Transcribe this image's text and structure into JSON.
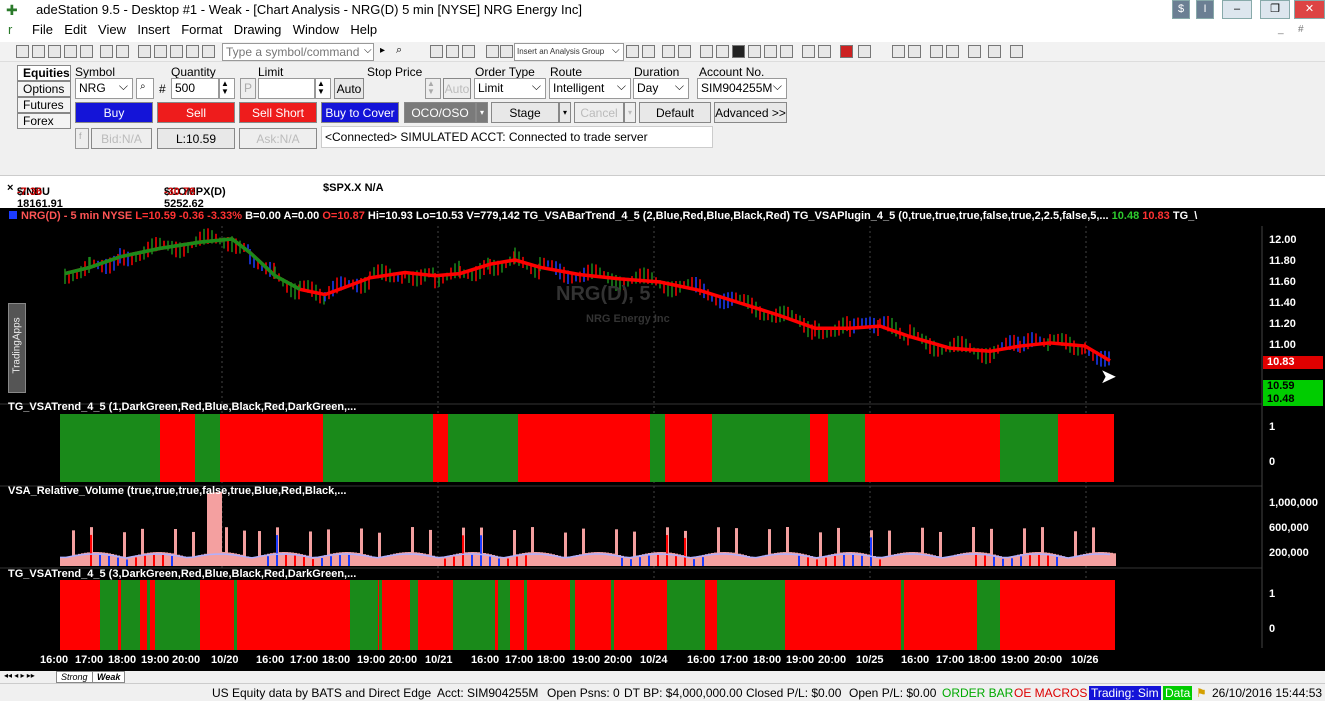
{
  "window": {
    "title": "adeStation 9.5 - Desktop #1 - Weak - [Chart Analysis - NRG(D) 5 min [NYSE] NRG Energy Inc]"
  },
  "menu": [
    "File",
    "Edit",
    "View",
    "Insert",
    "Format",
    "Drawing",
    "Window",
    "Help"
  ],
  "toolbar": {
    "symbol_placeholder": "Type a symbol/command",
    "analysis_group": "Insert an Analysis Group"
  },
  "order_bar": {
    "tabs": [
      "Equities",
      "Options",
      "Futures",
      "Forex"
    ],
    "symbol_label": "Symbol",
    "symbol_value": "NRG",
    "quantity_label": "Quantity",
    "quantity_value": "500",
    "limit_label": "Limit",
    "auto_label": "Auto",
    "stop_price_label": "Stop Price",
    "stop_auto_label": "Auto",
    "order_type_label": "Order Type",
    "order_type_value": "Limit",
    "route_label": "Route",
    "route_value": "Intelligent",
    "duration_label": "Duration",
    "duration_value": "Day",
    "account_label": "Account No.",
    "account_value": "SIM904255M",
    "buttons": {
      "buy": "Buy",
      "sell": "Sell",
      "sell_short": "Sell Short",
      "buy_to_cover": "Buy to Cover",
      "oco": "OCO/OSO",
      "stage": "Stage",
      "cancel": "Cancel",
      "default": "Default",
      "advanced": "Advanced >>"
    },
    "bid": "Bid:N/A",
    "last": "L:10.59",
    "ask": "Ask:N/A",
    "status": "<Connected> SIMULATED ACCT: Connected to trade server"
  },
  "tickers": [
    {
      "name": "$INDU 18161.91",
      "change": "-7.36"
    },
    {
      "name": "$COMPX(D) 5252.62",
      "change": "-30.78"
    },
    {
      "name": "$SPX.X N/A",
      "change": ""
    }
  ],
  "chart": {
    "legend_symbol": "NRG(D) - 5 min  NYSE",
    "legend_ohlc_red": "L=10.59  -0.36  -3.33%",
    "legend_mid": "B=0.00  A=0.00",
    "legend_open": "O=10.87",
    "legend_rest": "Hi=10.93  Lo=10.53  V=779,142  TG_VSABarTrend_4_5 (2,Blue,Red,Blue,Black,Red)   TG_VSAPlugin_4_5 (0,true,true,true,false,true,2,2.5,false,5,...",
    "legend_val1": "10.48",
    "legend_val2": "10.83",
    "legend_tail": "TG_\\",
    "watermark_symbol": "NRG(D), 5",
    "watermark_name": "NRG Energy Inc",
    "side_tab": "TradingApps",
    "price_axis": [
      "12.00",
      "11.80",
      "11.60",
      "11.40",
      "11.20",
      "11.00"
    ],
    "price_tags": {
      "red": "10.83",
      "last": "10.59",
      "green": "10.48"
    },
    "trend1_label": "TG_VSATrend_4_5 (1,DarkGreen,Red,Blue,Black,Red,DarkGreen,...",
    "trend_axis": [
      "1",
      "0"
    ],
    "volume_label": "VSA_Relative_Volume (true,true,true,false,true,Blue,Red,Black,...",
    "volume_axis": [
      "1,000,000",
      "600,000",
      "200,000"
    ],
    "trend2_label": "TG_VSATrend_4_5 (3,DarkGreen,Red,Blue,Black,Red,DarkGreen,...",
    "time_axis": [
      "16:00",
      "17:00",
      "18:00",
      "19:00",
      "20:00",
      "10/20",
      "16:00",
      "17:00",
      "18:00",
      "19:00",
      "20:00",
      "10/21",
      "16:00",
      "17:00",
      "18:00",
      "19:00",
      "20:00",
      "10/24",
      "16:00",
      "17:00",
      "18:00",
      "19:00",
      "20:00",
      "10/25",
      "16:00",
      "17:00",
      "18:00",
      "19:00",
      "20:00",
      "10/26"
    ],
    "colors": {
      "bg": "#000000",
      "up": "#1a8a1a",
      "down": "#ff0000",
      "blue": "#1c3cff"
    }
  },
  "sheet_tabs": [
    "Strong",
    "Weak"
  ],
  "statusbar": {
    "data": "US Equity data by BATS and Direct Edge",
    "acct": "Acct: SIM904255M",
    "psns": "Open Psns: 0",
    "dtbp": "DT BP: $4,000,000.00",
    "closed": "Closed P/L:  $0.00",
    "openpl": "Open P/L: $0.00",
    "order_bar": "ORDER BAR",
    "macros": "OE MACROS",
    "trading": "Trading: Sim",
    "data_lbl": "Data",
    "datetime": "26/10/2016 15:44:53"
  }
}
